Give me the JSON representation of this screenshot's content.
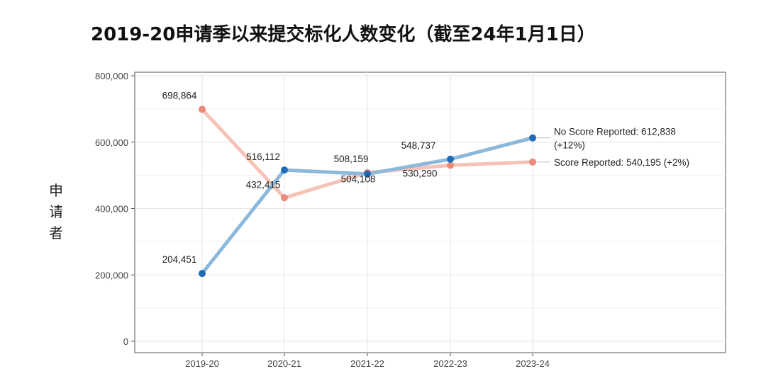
{
  "chart_data": {
    "type": "line",
    "title": "2019-20申请季以来提交标化人数变化（截至24年1月1日）",
    "ylabel": "申请者",
    "xlabel": "",
    "categories": [
      "2019-20",
      "2020-21",
      "2021-22",
      "2022-23",
      "2023-24"
    ],
    "ylim": [
      0,
      800000
    ],
    "y_ticks": [
      "0",
      "200,000",
      "400,000",
      "600,000",
      "800,000"
    ],
    "grid": true,
    "series": [
      {
        "name": "No Score Reported",
        "color": "#1f6bb5",
        "line_color": "#8cb9db",
        "values": [
          204451,
          516112,
          504108,
          548737,
          612838
        ],
        "labels": [
          "204,451",
          "516,112",
          "504,108",
          "548,737",
          ""
        ],
        "end_label": "No Score Reported: 612,838",
        "end_label_2": "(+12%)"
      },
      {
        "name": "Score Reported",
        "color": "#ea8a78",
        "line_color": "#f6c2b6",
        "values": [
          698864,
          432415,
          508159,
          530290,
          540195
        ],
        "labels": [
          "698,864",
          "432,415",
          "508,159",
          "530,290",
          ""
        ],
        "end_label": "Score Reported: 540,195 (+2%)"
      }
    ]
  }
}
